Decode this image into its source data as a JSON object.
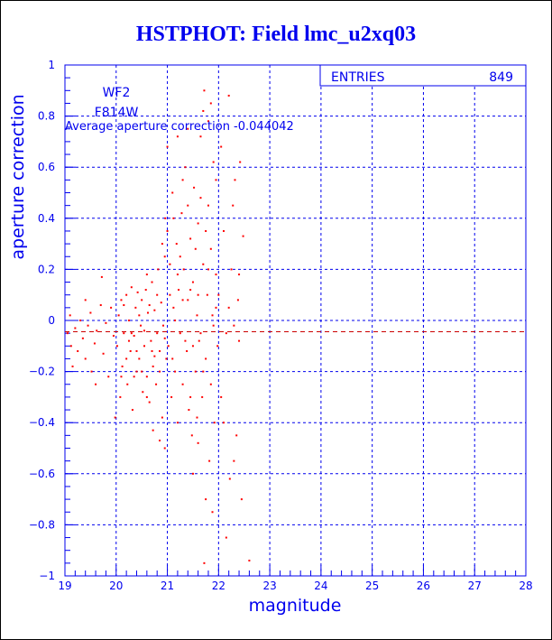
{
  "chart_data": {
    "type": "scatter",
    "title": "HSTPHOT: Field lmc_u2xq03",
    "xlabel": "magnitude",
    "ylabel": "aperture correction",
    "xlim": [
      19,
      28
    ],
    "ylim": [
      -1,
      1
    ],
    "xticks": [
      "19",
      "20",
      "21",
      "22",
      "23",
      "24",
      "25",
      "26",
      "27",
      "28"
    ],
    "yticks": [
      "-1",
      "-0.8",
      "-0.6",
      "-0.4",
      "-0.2",
      "0",
      "0.2",
      "0.4",
      "0.6",
      "0.8",
      "1"
    ],
    "grid": true,
    "annotations": {
      "chip": "WF2",
      "filter": "F814W",
      "average_text": "Average aperture correction -0.044042"
    },
    "average": -0.044042,
    "stats": {
      "label": "ENTRIES",
      "value": "849"
    },
    "colors": {
      "points": "#ff0000",
      "axes": "#0000ee",
      "average_line": "#cc0000"
    },
    "points": [
      [
        19.05,
        -0.05
      ],
      [
        19.1,
        0.02
      ],
      [
        19.12,
        -0.1
      ],
      [
        19.2,
        -0.03
      ],
      [
        19.25,
        -0.12
      ],
      [
        19.3,
        0.0
      ],
      [
        19.35,
        -0.07
      ],
      [
        19.4,
        -0.15
      ],
      [
        19.45,
        -0.02
      ],
      [
        19.5,
        0.03
      ],
      [
        19.52,
        -0.2
      ],
      [
        19.58,
        -0.09
      ],
      [
        19.62,
        -0.04
      ],
      [
        19.7,
        0.06
      ],
      [
        19.75,
        -0.13
      ],
      [
        19.8,
        -0.01
      ],
      [
        19.85,
        -0.22
      ],
      [
        19.9,
        0.05
      ],
      [
        19.95,
        -0.06
      ],
      [
        19.98,
        -0.38
      ],
      [
        19.72,
        0.17
      ],
      [
        19.6,
        -0.25
      ],
      [
        19.15,
        -0.18
      ],
      [
        19.4,
        0.08
      ],
      [
        20.02,
        -0.1
      ],
      [
        20.05,
        0.02
      ],
      [
        20.08,
        -0.3
      ],
      [
        20.1,
        0.08
      ],
      [
        20.12,
        -0.18
      ],
      [
        20.15,
        -0.05
      ],
      [
        20.2,
        0.1
      ],
      [
        20.22,
        -0.25
      ],
      [
        20.25,
        0.0
      ],
      [
        20.28,
        -0.12
      ],
      [
        20.3,
        0.13
      ],
      [
        20.32,
        -0.35
      ],
      [
        20.35,
        -0.06
      ],
      [
        20.38,
        0.05
      ],
      [
        20.4,
        -0.2
      ],
      [
        20.42,
        0.11
      ],
      [
        20.45,
        -0.15
      ],
      [
        20.48,
        -0.02
      ],
      [
        20.5,
        0.08
      ],
      [
        20.52,
        -0.28
      ],
      [
        20.55,
        -0.1
      ],
      [
        20.58,
        0.12
      ],
      [
        20.6,
        -0.22
      ],
      [
        20.62,
        0.03
      ],
      [
        20.65,
        -0.32
      ],
      [
        20.68,
        -0.08
      ],
      [
        20.7,
        0.15
      ],
      [
        20.72,
        -0.18
      ],
      [
        20.75,
        0.04
      ],
      [
        20.78,
        -0.25
      ],
      [
        20.8,
        -0.05
      ],
      [
        20.82,
        0.2
      ],
      [
        20.85,
        -0.12
      ],
      [
        20.88,
        0.07
      ],
      [
        20.9,
        -0.38
      ],
      [
        20.92,
        -0.02
      ],
      [
        20.95,
        0.25
      ],
      [
        20.98,
        -0.15
      ],
      [
        20.15,
        0.06
      ],
      [
        20.25,
        -0.08
      ],
      [
        20.35,
        -0.22
      ],
      [
        20.45,
        0.02
      ],
      [
        20.55,
        -0.04
      ],
      [
        20.65,
        0.06
      ],
      [
        20.75,
        -0.14
      ],
      [
        20.85,
        -0.2
      ],
      [
        20.95,
        -0.07
      ],
      [
        20.6,
        -0.3
      ],
      [
        20.7,
        -0.12
      ],
      [
        20.8,
        0.1
      ],
      [
        20.9,
        0.3
      ],
      [
        20.96,
        0.4
      ],
      [
        20.4,
        -0.12
      ],
      [
        20.5,
        -0.2
      ],
      [
        20.3,
        -0.05
      ],
      [
        20.2,
        -0.15
      ],
      [
        20.85,
        -0.47
      ],
      [
        20.95,
        -0.5
      ],
      [
        20.6,
        0.18
      ],
      [
        20.1,
        -0.22
      ],
      [
        20.72,
        -0.43
      ],
      [
        21.0,
        0.35
      ],
      [
        21.02,
        -0.1
      ],
      [
        21.05,
        0.22
      ],
      [
        21.08,
        -0.3
      ],
      [
        21.1,
        0.5
      ],
      [
        21.12,
        0.05
      ],
      [
        21.15,
        -0.2
      ],
      [
        21.18,
        0.3
      ],
      [
        21.2,
        -0.4
      ],
      [
        21.22,
        0.12
      ],
      [
        21.25,
        -0.05
      ],
      [
        21.28,
        0.42
      ],
      [
        21.3,
        -0.25
      ],
      [
        21.32,
        0.2
      ],
      [
        21.35,
        0.6
      ],
      [
        21.38,
        -0.12
      ],
      [
        21.4,
        0.08
      ],
      [
        21.42,
        -0.35
      ],
      [
        21.45,
        0.32
      ],
      [
        21.48,
        -0.45
      ],
      [
        21.5,
        0.15
      ],
      [
        21.52,
        0.52
      ],
      [
        21.55,
        -0.2
      ],
      [
        21.58,
        0.02
      ],
      [
        21.6,
        0.38
      ],
      [
        21.62,
        -0.08
      ],
      [
        21.65,
        0.72
      ],
      [
        21.68,
        -0.3
      ],
      [
        21.7,
        0.22
      ],
      [
        21.72,
        0.9
      ],
      [
        21.75,
        -0.15
      ],
      [
        21.78,
        0.1
      ],
      [
        21.8,
        0.45
      ],
      [
        21.82,
        -0.55
      ],
      [
        21.85,
        0.28
      ],
      [
        21.88,
        0.02
      ],
      [
        21.9,
        0.62
      ],
      [
        21.92,
        -0.4
      ],
      [
        21.95,
        0.18
      ],
      [
        21.98,
        -0.1
      ],
      [
        21.05,
        0.1
      ],
      [
        21.15,
        0.0
      ],
      [
        21.25,
        0.25
      ],
      [
        21.35,
        -0.08
      ],
      [
        21.45,
        0.12
      ],
      [
        21.55,
        0.28
      ],
      [
        21.65,
        -0.05
      ],
      [
        21.75,
        0.35
      ],
      [
        21.85,
        -0.25
      ],
      [
        21.95,
        0.05
      ],
      [
        21.1,
        -0.15
      ],
      [
        21.2,
        0.18
      ],
      [
        21.3,
        0.08
      ],
      [
        21.4,
        0.45
      ],
      [
        21.5,
        -0.1
      ],
      [
        21.6,
        0.1
      ],
      [
        21.7,
        -0.2
      ],
      [
        21.8,
        0.2
      ],
      [
        21.9,
        -0.02
      ],
      [
        21.8,
        0.78
      ],
      [
        21.85,
        0.85
      ],
      [
        21.7,
        0.82
      ],
      [
        21.6,
        -0.48
      ],
      [
        21.5,
        -0.6
      ],
      [
        21.75,
        -0.7
      ],
      [
        21.88,
        -0.75
      ],
      [
        21.72,
        -0.95
      ],
      [
        21.0,
        0.68
      ],
      [
        21.2,
        0.72
      ],
      [
        21.4,
        0.75
      ],
      [
        21.12,
        0.4
      ],
      [
        21.3,
        0.55
      ],
      [
        21.45,
        -0.3
      ],
      [
        21.95,
        0.55
      ],
      [
        21.65,
        0.48
      ],
      [
        21.58,
        -0.38
      ],
      [
        22.0,
        0.1
      ],
      [
        22.05,
        -0.3
      ],
      [
        22.1,
        0.35
      ],
      [
        22.15,
        -0.05
      ],
      [
        22.2,
        0.88
      ],
      [
        22.22,
        -0.62
      ],
      [
        22.25,
        0.2
      ],
      [
        22.3,
        -0.02
      ],
      [
        22.32,
        0.55
      ],
      [
        22.35,
        -0.45
      ],
      [
        22.38,
        0.08
      ],
      [
        22.4,
        0.18
      ],
      [
        22.42,
        0.62
      ],
      [
        22.45,
        -0.7
      ],
      [
        22.48,
        0.33
      ],
      [
        22.05,
        0.68
      ],
      [
        22.15,
        -0.85
      ],
      [
        22.28,
        0.45
      ],
      [
        22.4,
        -0.08
      ],
      [
        22.3,
        -0.55
      ],
      [
        22.6,
        -0.94
      ],
      [
        22.1,
        -0.4
      ],
      [
        22.2,
        0.05
      ]
    ]
  }
}
